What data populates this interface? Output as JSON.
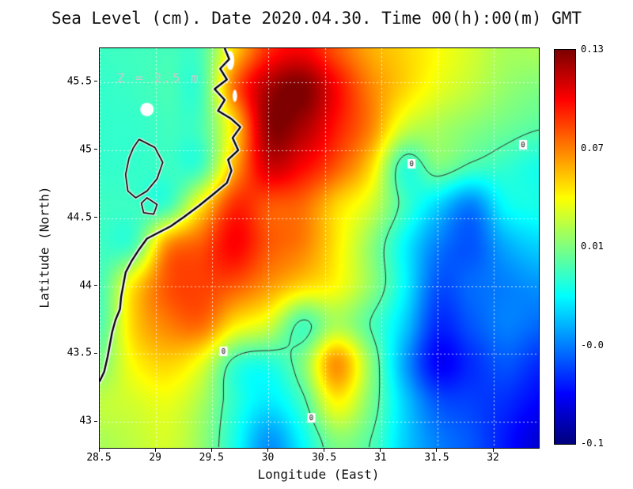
{
  "chart_data": {
    "type": "heatmap",
    "title": "Sea Level (cm). Date 2020.04.30. Time 00(h):00(m) GMT",
    "annotation": "Z = 2.5 m",
    "xlabel": "Longitude (East)",
    "ylabel": "Latitude (North)",
    "xlim": [
      28.5,
      32.4
    ],
    "ylim": [
      42.81,
      45.75
    ],
    "grid": true,
    "colormap": "jet",
    "x_ticks": [
      28.5,
      29,
      29.5,
      30,
      30.5,
      31,
      31.5,
      32
    ],
    "x_tick_labels": [
      "28.5",
      "29",
      "29.5",
      "30",
      "30.5",
      "31",
      "31.5",
      "32"
    ],
    "y_ticks": [
      43,
      43.5,
      44,
      44.5,
      45,
      45.5
    ],
    "y_tick_labels": [
      "43",
      "43.5",
      "44",
      "44.5",
      "45",
      "45.5"
    ],
    "colorbar": {
      "labels": [
        "0.13",
        "0.07",
        "0.01",
        "-0.0",
        "-0.1"
      ],
      "vmin": -0.11,
      "vmax": 0.13
    },
    "x": [
      28.5,
      28.8,
      29.1,
      29.4,
      29.7,
      30.0,
      30.3,
      30.6,
      30.9,
      31.2,
      31.5,
      31.8,
      32.1,
      32.4
    ],
    "y": [
      42.85,
      43.14,
      43.43,
      43.72,
      44.01,
      44.3,
      44.59,
      44.88,
      45.17,
      45.46,
      45.75
    ],
    "values": [
      [
        0.02,
        0.025,
        0.03,
        0.015,
        -0.015,
        -0.045,
        -0.02,
        0.01,
        0.0,
        -0.03,
        -0.05,
        -0.06,
        -0.075,
        -0.09
      ],
      [
        0.025,
        0.03,
        0.035,
        0.02,
        -0.01,
        -0.025,
        -0.005,
        0.04,
        0.01,
        -0.03,
        -0.06,
        -0.065,
        -0.07,
        -0.08
      ],
      [
        0.01,
        0.04,
        0.05,
        0.035,
        -0.006,
        -0.012,
        0.01,
        0.065,
        0.015,
        -0.04,
        -0.08,
        -0.07,
        -0.06,
        -0.07
      ],
      [
        -0.002,
        0.05,
        0.07,
        0.075,
        0.045,
        0.03,
        -0.003,
        0.02,
        0.0,
        -0.03,
        -0.07,
        -0.06,
        -0.05,
        -0.055
      ],
      [
        -0.004,
        0.045,
        0.08,
        0.085,
        0.08,
        0.065,
        0.05,
        0.04,
        0.015,
        -0.02,
        -0.06,
        -0.055,
        -0.05,
        -0.045
      ],
      [
        -0.006,
        -0.002,
        0.065,
        0.08,
        0.1,
        0.08,
        0.07,
        0.045,
        0.015,
        -0.02,
        -0.05,
        -0.06,
        -0.04,
        -0.03
      ],
      [
        -0.006,
        -0.006,
        -0.004,
        0.045,
        0.09,
        0.08,
        0.075,
        0.05,
        0.03,
        -0.005,
        -0.03,
        -0.05,
        -0.02,
        -0.015
      ],
      [
        -0.008,
        -0.008,
        -0.006,
        -0.004,
        0.06,
        0.11,
        0.1,
        0.08,
        0.05,
        -0.008,
        0.008,
        -0.003,
        -0.008,
        -0.015
      ],
      [
        -0.008,
        -0.008,
        -0.005,
        -0.002,
        0.05,
        0.125,
        0.12,
        0.095,
        0.07,
        0.03,
        0.02,
        0.012,
        0.006,
        0.001
      ],
      [
        -0.008,
        -0.006,
        -0.003,
        -0.004,
        0.075,
        0.12,
        0.13,
        0.1,
        0.07,
        0.05,
        0.035,
        0.025,
        0.015,
        0.01
      ],
      [
        -0.006,
        -0.005,
        -0.004,
        -0.002,
        0.05,
        0.09,
        0.1,
        0.08,
        0.06,
        0.05,
        0.04,
        0.03,
        0.02,
        0.02
      ]
    ],
    "contour_level": 0,
    "contour_label_text": "0",
    "contour_labels": [
      {
        "lon": 29.6,
        "lat": 43.52
      },
      {
        "lon": 30.38,
        "lat": 43.03
      },
      {
        "lon": 31.27,
        "lat": 44.9
      },
      {
        "lon": 32.26,
        "lat": 45.04
      }
    ],
    "coastline": [
      [
        29.61,
        45.75
      ],
      [
        29.65,
        45.67
      ],
      [
        29.57,
        45.6
      ],
      [
        29.63,
        45.52
      ],
      [
        29.52,
        45.45
      ],
      [
        29.61,
        45.37
      ],
      [
        29.55,
        45.29
      ],
      [
        29.67,
        45.23
      ],
      [
        29.75,
        45.17
      ],
      [
        29.68,
        45.09
      ],
      [
        29.73,
        45.0
      ],
      [
        29.64,
        44.93
      ],
      [
        29.67,
        44.85
      ],
      [
        29.63,
        44.76
      ],
      [
        29.5,
        44.67
      ],
      [
        29.38,
        44.59
      ],
      [
        29.25,
        44.51
      ],
      [
        29.13,
        44.44
      ],
      [
        28.92,
        44.35
      ],
      [
        28.85,
        44.27
      ],
      [
        28.78,
        44.18
      ],
      [
        28.73,
        44.1
      ],
      [
        28.71,
        44.01
      ],
      [
        28.69,
        43.92
      ],
      [
        28.68,
        43.83
      ],
      [
        28.64,
        43.75
      ],
      [
        28.61,
        43.66
      ],
      [
        28.59,
        43.57
      ],
      [
        28.57,
        43.48
      ],
      [
        28.54,
        43.37
      ],
      [
        28.5,
        43.3
      ]
    ],
    "lagoons": [
      [
        [
          28.85,
          45.08
        ],
        [
          28.99,
          45.02
        ],
        [
          29.06,
          44.91
        ],
        [
          29.01,
          44.79
        ],
        [
          28.92,
          44.7
        ],
        [
          28.82,
          44.65
        ],
        [
          28.75,
          44.7
        ],
        [
          28.73,
          44.82
        ],
        [
          28.76,
          44.94
        ],
        [
          28.8,
          45.02
        ]
      ],
      [
        [
          28.92,
          44.65
        ],
        [
          29.01,
          44.6
        ],
        [
          28.98,
          44.53
        ],
        [
          28.89,
          44.54
        ],
        [
          28.87,
          44.61
        ]
      ]
    ],
    "white_patches": [
      {
        "lon": 28.92,
        "lat": 45.3,
        "rlon": 0.06,
        "rlat": 0.05
      },
      {
        "lon": 29.66,
        "lat": 45.66,
        "rlon": 0.035,
        "rlat": 0.07
      },
      {
        "lon": 29.7,
        "lat": 45.4,
        "rlon": 0.02,
        "rlat": 0.045
      }
    ]
  }
}
